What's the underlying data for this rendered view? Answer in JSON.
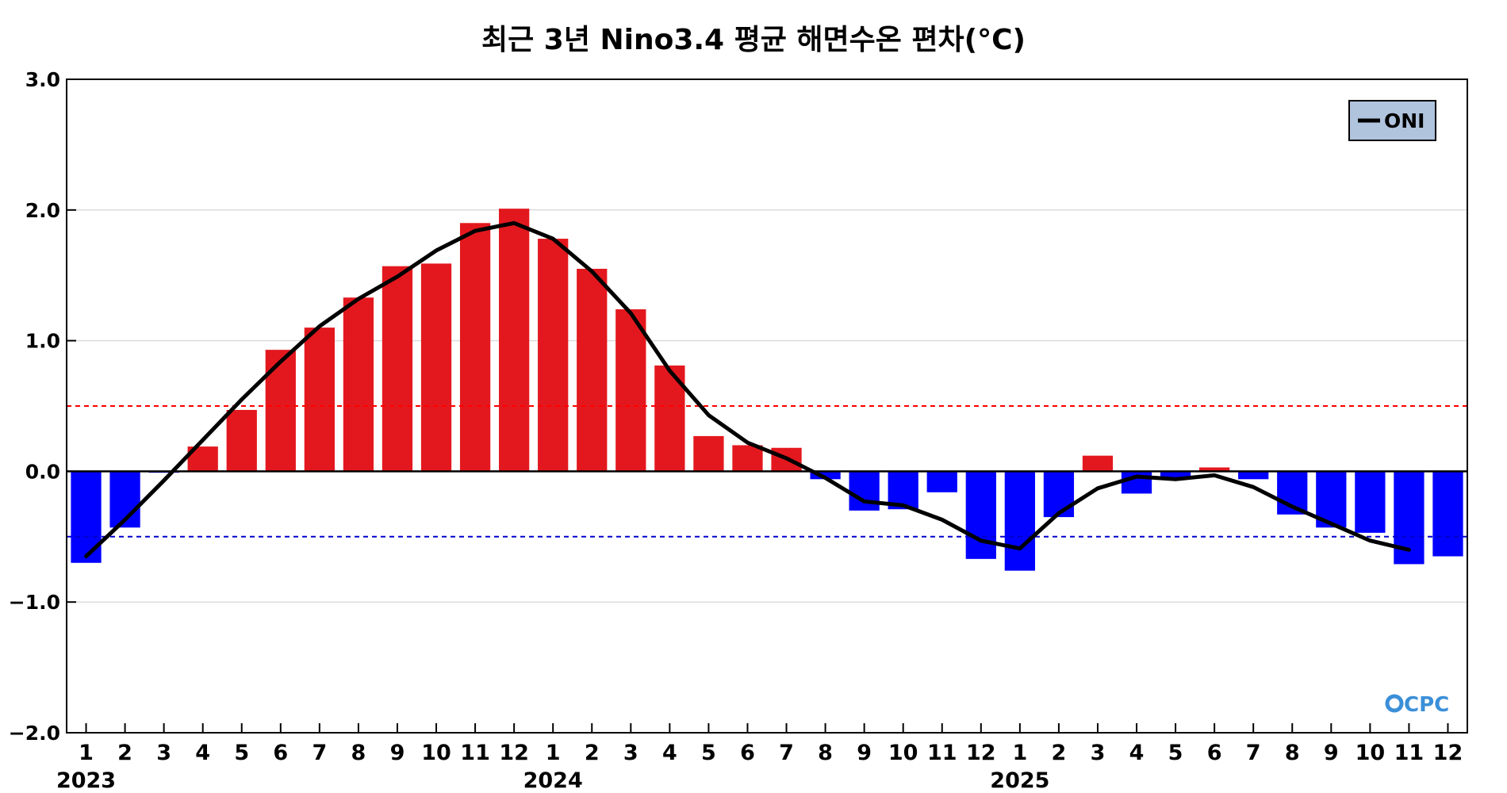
{
  "chart_data": {
    "type": "bar",
    "title": "최근 3년 Nino3.4 평균 해면수온 편차(°C)",
    "xlabel": "",
    "ylabel": "",
    "ylim": [
      -2.0,
      3.0
    ],
    "yticks": [
      "3.0",
      "2.0",
      "1.0",
      "0.0",
      "−1.0",
      "−2.0"
    ],
    "ytick_values": [
      3,
      2,
      1,
      0,
      -1,
      -2
    ],
    "categories": [
      "1",
      "2",
      "3",
      "4",
      "5",
      "6",
      "7",
      "8",
      "9",
      "10",
      "11",
      "12",
      "1",
      "2",
      "3",
      "4",
      "5",
      "6",
      "7",
      "8",
      "9",
      "10",
      "11",
      "12",
      "1",
      "2",
      "3",
      "4",
      "5",
      "6",
      "7",
      "8",
      "9",
      "10",
      "11",
      "12"
    ],
    "years": [
      {
        "label": "2023",
        "start_index": 0
      },
      {
        "label": "2024",
        "start_index": 12
      },
      {
        "label": "2025",
        "start_index": 24
      }
    ],
    "series": [
      {
        "kind": "bar",
        "values": [
          -0.7,
          -0.43,
          -0.01,
          0.19,
          0.47,
          0.93,
          1.1,
          1.33,
          1.57,
          1.59,
          1.9,
          2.01,
          1.78,
          1.55,
          1.24,
          0.81,
          0.27,
          0.2,
          0.18,
          -0.06,
          -0.3,
          -0.29,
          -0.16,
          -0.67,
          -0.76,
          -0.35,
          0.12,
          -0.17,
          -0.05,
          0.03,
          -0.06,
          -0.33,
          -0.43,
          -0.47,
          -0.71,
          -0.65
        ],
        "positive_color": "#e3181e",
        "negative_color": "#0000ff"
      },
      {
        "name": "ONI",
        "kind": "line",
        "color": "#000000",
        "values": [
          -0.65,
          -0.37,
          -0.07,
          0.24,
          0.55,
          0.84,
          1.11,
          1.32,
          1.49,
          1.69,
          1.84,
          1.9,
          1.78,
          1.53,
          1.21,
          0.77,
          0.43,
          0.22,
          0.1,
          -0.05,
          -0.23,
          -0.26,
          -0.37,
          -0.53,
          -0.59,
          -0.32,
          -0.13,
          -0.04,
          -0.06,
          -0.03,
          -0.12,
          -0.27,
          -0.4,
          -0.53,
          -0.6,
          null
        ]
      }
    ],
    "reference_lines": [
      {
        "value": 0.5,
        "color": "#ff0000",
        "style": "dashed"
      },
      {
        "value": -0.5,
        "color": "#0000cc",
        "style": "dashed"
      },
      {
        "value": 0.0,
        "color": "#000000",
        "style": "solid"
      }
    ],
    "grid": true,
    "legend": {
      "placement": "top-right",
      "entries": [
        "ONI"
      ],
      "background": "#b0c4de"
    },
    "logo": "CPC"
  }
}
